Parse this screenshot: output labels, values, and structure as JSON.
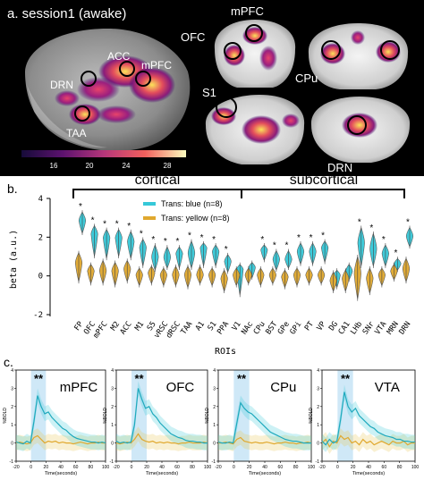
{
  "panel_a": {
    "label": "a. session1 (awake)",
    "brain_labels": [
      "ACC",
      "mPFC",
      "DRN",
      "TAA"
    ],
    "slice_labels": [
      "mPFC",
      "OFC",
      "CPu",
      "S1",
      "DRN"
    ],
    "colorbar_ticks": [
      "16",
      "20",
      "24",
      "28"
    ],
    "colors": {
      "background": "#000000",
      "low": "#2a0a5e",
      "mid": "#d6306b",
      "high": "#f9e14b",
      "circle": "#000000"
    }
  },
  "panel_b": {
    "label": "b.",
    "group_labels": [
      "cortical",
      "subcortical"
    ],
    "ylabel": "beta (a.u.)",
    "xlabel": "ROIs",
    "significance_marker": "*"
  },
  "panel_c": {
    "label": "c.",
    "ylabel": "%BOLD",
    "xlabel": "Time(seconds)",
    "significance_marker": "**",
    "x_ticks": [
      "-20",
      "0",
      "20",
      "40",
      "60",
      "80",
      "100"
    ],
    "y_ticks": [
      "-1",
      "0",
      "1",
      "2",
      "3",
      "4"
    ],
    "panels": [
      {
        "title": "mPFC",
        "blue": [
          0.05,
          0.0,
          -0.05,
          0.1,
          0.0,
          1.2,
          2.6,
          2.0,
          1.6,
          1.7,
          1.4,
          1.2,
          1.0,
          0.8,
          0.7,
          0.5,
          0.35,
          0.25,
          0.2,
          0.15,
          0.1,
          0.05,
          0.05,
          0.0,
          0.05,
          0.0
        ],
        "yellow": [
          0.0,
          0.05,
          0.0,
          -0.05,
          0.0,
          0.3,
          0.4,
          0.2,
          0.0,
          0.1,
          0.05,
          0.1,
          0.0,
          0.05,
          0.0,
          0.0,
          -0.05,
          0.0,
          0.05,
          0.0,
          -0.05,
          0.0,
          0.0,
          0.05,
          0.0,
          0.0
        ]
      },
      {
        "title": "OFC",
        "blue": [
          0.1,
          0.0,
          0.05,
          0.0,
          0.05,
          1.0,
          3.0,
          2.4,
          1.9,
          2.0,
          1.6,
          1.4,
          1.1,
          0.9,
          0.7,
          0.5,
          0.4,
          0.3,
          0.25,
          0.15,
          0.1,
          0.1,
          0.05,
          0.05,
          0.0,
          0.0
        ],
        "yellow": [
          0.0,
          -0.05,
          0.0,
          0.05,
          0.0,
          0.2,
          0.5,
          0.2,
          0.1,
          0.05,
          0.1,
          0.0,
          0.05,
          0.0,
          0.05,
          0.0,
          0.0,
          -0.05,
          0.0,
          0.0,
          0.05,
          0.0,
          0.0,
          0.0,
          0.05,
          0.0
        ]
      },
      {
        "title": "CPu",
        "blue": [
          0.05,
          0.0,
          0.0,
          0.05,
          0.0,
          1.1,
          2.2,
          1.9,
          1.7,
          1.6,
          1.4,
          1.2,
          1.0,
          0.8,
          0.6,
          0.5,
          0.4,
          0.3,
          0.2,
          0.15,
          0.1,
          0.1,
          0.05,
          0.0,
          0.0,
          0.0
        ],
        "yellow": [
          0.0,
          0.0,
          0.05,
          0.0,
          -0.05,
          0.2,
          0.3,
          0.1,
          0.05,
          0.0,
          0.05,
          0.0,
          0.0,
          0.05,
          0.0,
          -0.05,
          0.0,
          0.0,
          0.05,
          0.0,
          0.0,
          -0.05,
          0.0,
          0.0,
          0.05,
          0.0
        ]
      },
      {
        "title": "VTA",
        "blue": [
          0.1,
          -0.1,
          0.2,
          0.0,
          0.1,
          1.3,
          2.8,
          2.0,
          1.7,
          1.9,
          1.5,
          1.3,
          1.1,
          0.9,
          0.8,
          0.6,
          0.5,
          0.4,
          0.35,
          0.3,
          0.2,
          0.2,
          0.1,
          0.1,
          0.05,
          0.05
        ],
        "yellow": [
          0.0,
          0.2,
          -0.2,
          0.1,
          0.0,
          0.4,
          0.2,
          0.3,
          0.0,
          0.1,
          -0.1,
          0.2,
          0.0,
          0.1,
          -0.1,
          0.0,
          0.1,
          0.0,
          -0.1,
          0.1,
          0.0,
          0.0,
          0.1,
          -0.1,
          0.0,
          0.0
        ]
      }
    ]
  },
  "chart_data": [
    {
      "type": "violin",
      "title": "",
      "xlabel": "ROIs",
      "ylabel": "beta (a.u.)",
      "ylim": [
        -2,
        4
      ],
      "y_ticks": [
        "-2",
        "0",
        "2",
        "4"
      ],
      "groups": [
        {
          "name": "cortical",
          "categories": [
            "FP",
            "OFC",
            "mPFC",
            "M2",
            "ACC",
            "M1",
            "S5",
            "vRSC",
            "dRSC",
            "TAA",
            "A1",
            "S1",
            "PPA",
            "V1"
          ]
        },
        {
          "name": "subcortical",
          "categories": [
            "NAc",
            "CPu",
            "BST",
            "GPe",
            "GPi",
            "PT",
            "VP",
            "DG",
            "CA1",
            "LHb",
            "SNr",
            "VTA",
            "MRN",
            "DRN"
          ]
        }
      ],
      "categories": [
        "FP",
        "OFC",
        "mPFC",
        "M2",
        "ACC",
        "M1",
        "S5",
        "vRSC",
        "dRSC",
        "TAA",
        "A1",
        "S1",
        "PPA",
        "V1",
        "NAc",
        "CPu",
        "BST",
        "GPe",
        "GPi",
        "PT",
        "VP",
        "DG",
        "CA1",
        "LHb",
        "SNr",
        "VTA",
        "MRN",
        "DRN"
      ],
      "significant": [
        true,
        true,
        true,
        true,
        true,
        true,
        true,
        true,
        true,
        true,
        true,
        true,
        true,
        false,
        false,
        true,
        true,
        true,
        true,
        true,
        true,
        false,
        false,
        true,
        true,
        true,
        true,
        true
      ],
      "series": [
        {
          "name": "Trans: blue (n=8)",
          "color": "#35c8d8",
          "median": [
            2.8,
            2.1,
            1.9,
            1.9,
            1.7,
            1.4,
            0.9,
            0.9,
            1.1,
            1.1,
            1.4,
            1.2,
            0.7,
            0.3,
            0.4,
            1.3,
            0.8,
            0.8,
            1.2,
            1.2,
            1.4,
            0.0,
            0.2,
            1.6,
            1.3,
            1.1,
            0.6,
            2.0
          ],
          "low": [
            2.2,
            1.0,
            0.9,
            1.0,
            0.9,
            0.5,
            0.3,
            0.4,
            0.4,
            0.4,
            0.5,
            0.5,
            0.2,
            -1.0,
            -0.1,
            0.8,
            0.3,
            0.4,
            0.6,
            0.6,
            0.7,
            -0.6,
            -0.2,
            0.5,
            0.5,
            0.5,
            0.3,
            1.5
          ],
          "high": [
            3.3,
            2.6,
            2.4,
            2.4,
            2.3,
            1.9,
            1.6,
            1.5,
            1.5,
            1.8,
            1.7,
            1.6,
            1.1,
            0.6,
            0.7,
            1.6,
            1.3,
            1.3,
            1.7,
            1.7,
            1.8,
            0.3,
            0.6,
            2.5,
            2.2,
            1.6,
            0.9,
            2.5
          ]
        },
        {
          "name": "Trans: yellow (n=8)",
          "color": "#e0a82e",
          "median": [
            0.6,
            0.2,
            0.2,
            0.2,
            0.3,
            0.0,
            0.1,
            0.0,
            0.0,
            0.0,
            0.0,
            0.0,
            -0.2,
            0.0,
            0.0,
            0.0,
            0.0,
            -0.1,
            0.0,
            0.0,
            0.0,
            -0.3,
            -0.2,
            0.0,
            -0.2,
            0.0,
            0.2,
            0.3
          ],
          "low": [
            -0.3,
            -0.4,
            -0.4,
            -0.5,
            -0.3,
            -0.5,
            -0.4,
            -0.5,
            -0.5,
            -0.6,
            -0.4,
            -0.5,
            -0.8,
            -0.5,
            -0.4,
            -0.5,
            -0.4,
            -0.6,
            -0.5,
            -0.4,
            -0.4,
            -0.8,
            -0.8,
            -1.2,
            -0.9,
            -0.5,
            -0.2,
            -0.3
          ],
          "high": [
            1.2,
            0.6,
            0.8,
            0.7,
            0.8,
            0.4,
            0.5,
            0.4,
            0.5,
            0.5,
            0.5,
            0.4,
            0.3,
            0.4,
            0.4,
            0.4,
            0.4,
            0.3,
            0.4,
            0.4,
            0.4,
            0.2,
            0.3,
            1.0,
            0.4,
            0.4,
            0.6,
            0.9
          ]
        }
      ],
      "legend": "top-center",
      "grid": false
    }
  ]
}
